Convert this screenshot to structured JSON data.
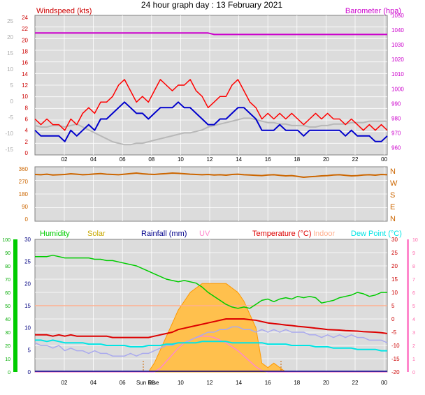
{
  "title": "24 hour graph day : 13 February 2021",
  "colors": {
    "wind_gust": "#ff0000",
    "wind_avg": "#0000cc",
    "wind_dir": "#cc6600",
    "barometer": "#cc00cc",
    "baro_grey": "#b8b8b8",
    "humidity": "#00cc00",
    "solar": "#ffa500",
    "rainfall": "#00008b",
    "uv": "#ff88cc",
    "temperature": "#dd0000",
    "indoor": "#ffb090",
    "dewpoint": "#00e5e5",
    "windchill": "#aaaaee",
    "plot_bg": "#dcdcdc"
  },
  "chart_data": [
    {
      "type": "line",
      "title": "24 hour graph day : 13 February 2021",
      "grid": true,
      "x_ticks": [
        "02",
        "04",
        "06",
        "08",
        "10",
        "12",
        "14",
        "16",
        "18",
        "20",
        "22",
        "00"
      ],
      "left_axis": {
        "label": "Windspeed (kts)",
        "range": [
          0,
          24
        ],
        "ticks": [
          0,
          2,
          4,
          6,
          8,
          10,
          12,
          14,
          16,
          18,
          20,
          22,
          24
        ]
      },
      "outer_left_ticks": [
        "-15",
        "-10",
        "-5",
        "0",
        "5",
        "10",
        "15",
        "20",
        "25"
      ],
      "right_axis": {
        "label": "Barometer (hpa)",
        "range": [
          955,
          1050
        ],
        "ticks": [
          960,
          970,
          980,
          990,
          1000,
          1010,
          1020,
          1030,
          1040,
          1050
        ]
      },
      "series": [
        {
          "name": "Windspeed (kts)",
          "role": "gust",
          "color": "#ff0000",
          "values": [
            6,
            5,
            6,
            5,
            5,
            4,
            6,
            5,
            7,
            8,
            7,
            9,
            9,
            10,
            12,
            13,
            11,
            9,
            10,
            9,
            11,
            13,
            12,
            11,
            12,
            12,
            13,
            11,
            10,
            8,
            9,
            10,
            10,
            12,
            13,
            11,
            9,
            8,
            6,
            7,
            6,
            7,
            6,
            7,
            6,
            5,
            6,
            7,
            6,
            7,
            6,
            6,
            5,
            6,
            5,
            4,
            5,
            4,
            5,
            4
          ]
        },
        {
          "role": "average",
          "color": "#0000cc",
          "values": [
            4,
            3,
            3,
            3,
            3,
            2,
            4,
            3,
            4,
            5,
            4,
            6,
            6,
            7,
            8,
            9,
            8,
            7,
            7,
            6,
            7,
            8,
            8,
            8,
            9,
            8,
            8,
            7,
            6,
            5,
            5,
            6,
            6,
            7,
            8,
            8,
            7,
            6,
            4,
            4,
            4,
            5,
            4,
            4,
            4,
            3,
            4,
            4,
            4,
            4,
            4,
            4,
            3,
            4,
            3,
            3,
            3,
            2,
            2,
            3
          ]
        },
        {
          "role": "barometer",
          "color": "#cc00cc",
          "values": [
            1038,
            1038,
            1038,
            1038,
            1038,
            1038,
            1038,
            1038,
            1038,
            1038,
            1038,
            1038,
            1038,
            1038,
            1038,
            1038,
            1038,
            1038,
            1038,
            1038,
            1038,
            1038,
            1038,
            1038,
            1038,
            1038,
            1038,
            1038,
            1038,
            1038,
            1037,
            1037,
            1037,
            1037,
            1037,
            1037,
            1037,
            1037,
            1037,
            1037,
            1037,
            1037,
            1037,
            1037,
            1037,
            1037,
            1037,
            1037,
            1037,
            1037,
            1037,
            1037,
            1037,
            1037,
            1037,
            1037,
            1037,
            1037,
            1037,
            1037
          ]
        },
        {
          "role": "grey-trace",
          "color": "#b8b8b8",
          "values": [
            975,
            974,
            974,
            975,
            975,
            974,
            975,
            976,
            974,
            972,
            970,
            968,
            966,
            964,
            963,
            962,
            962,
            963,
            963,
            964,
            965,
            966,
            967,
            968,
            969,
            970,
            970,
            971,
            972,
            974,
            975,
            976,
            977,
            978,
            979,
            980,
            980,
            979,
            978,
            977,
            977,
            976,
            976,
            975,
            975,
            975,
            974,
            974,
            975,
            975,
            976,
            976,
            976,
            977,
            977,
            977,
            978,
            978,
            978,
            978
          ]
        }
      ]
    },
    {
      "type": "line",
      "grid": true,
      "left_axis": {
        "range": [
          0,
          360
        ],
        "ticks": [
          0,
          90,
          180,
          270,
          360
        ]
      },
      "right_labels": [
        "N",
        "W",
        "S",
        "E",
        "N"
      ],
      "series": [
        {
          "role": "wind direction",
          "color": "#cc6600",
          "values": [
            320,
            318,
            322,
            316,
            318,
            320,
            325,
            322,
            318,
            320,
            324,
            326,
            322,
            320,
            318,
            322,
            326,
            330,
            325,
            322,
            320,
            324,
            326,
            330,
            328,
            325,
            322,
            320,
            318,
            320,
            316,
            318,
            315,
            320,
            322,
            318,
            316,
            314,
            312,
            316,
            318,
            314,
            310,
            312,
            306,
            300,
            304,
            306,
            310,
            312,
            316,
            318,
            314,
            310,
            312,
            316,
            318,
            315,
            320,
            318
          ]
        }
      ]
    },
    {
      "type": "line",
      "grid": true,
      "x_ticks": [
        "02",
        "04",
        "06",
        "08",
        "10",
        "12",
        "14",
        "16",
        "18",
        "20",
        "22",
        "00"
      ],
      "legend": [
        "Humidity",
        "Solar",
        "Rainfall (mm)",
        "UV",
        "Temperature (°C)",
        "Indoor",
        "Dew Point (°C)"
      ],
      "annotation": "Sun Rise",
      "outer_left_axis": {
        "range": [
          0,
          100
        ],
        "ticks": [
          0,
          10,
          20,
          30,
          40,
          50,
          60,
          70,
          80,
          90,
          100
        ]
      },
      "left_axis": {
        "range": [
          0,
          30
        ],
        "ticks": [
          0,
          5,
          10,
          15,
          20,
          25,
          30
        ]
      },
      "right_axis": {
        "range": [
          -20,
          30
        ],
        "ticks": [
          -20,
          -15,
          -10,
          -5,
          0,
          5,
          10,
          15,
          20,
          25,
          30
        ]
      },
      "outer_right_axis": {
        "range": [
          0,
          10
        ],
        "ticks": [
          0,
          1,
          2,
          3,
          4,
          5,
          6,
          7,
          8,
          9,
          10
        ]
      },
      "series": [
        {
          "name": "Humidity",
          "color": "#00cc00",
          "values": [
            87,
            87,
            87,
            88,
            87,
            86,
            86,
            86,
            86,
            86,
            85,
            85,
            84,
            84,
            83,
            82,
            81,
            80,
            78,
            76,
            74,
            72,
            70,
            69,
            68,
            69,
            68,
            67,
            64,
            60,
            57,
            54,
            51,
            49,
            48,
            49,
            48,
            51,
            54,
            55,
            53,
            55,
            56,
            55,
            57,
            56,
            57,
            56,
            52,
            53,
            54,
            56,
            57,
            58,
            60,
            59,
            57,
            58,
            60,
            60
          ]
        },
        {
          "name": "Solar",
          "color": "#ffa500",
          "values": [
            0,
            0,
            0,
            0,
            0,
            0,
            0,
            0,
            0,
            0,
            0,
            0,
            0,
            0,
            0,
            0,
            0,
            0,
            0,
            0,
            2,
            5,
            8,
            11,
            14,
            16,
            18,
            19,
            20,
            20,
            20,
            20,
            20,
            19,
            18,
            16,
            13,
            10,
            2,
            1,
            2,
            1,
            0,
            0,
            0,
            0,
            0,
            0,
            0,
            0,
            0,
            0,
            0,
            0,
            0,
            0,
            0,
            0,
            0,
            0
          ]
        },
        {
          "name": "Rainfall (mm)",
          "color": "#00008b",
          "values": [
            0,
            0,
            0,
            0,
            0,
            0,
            0,
            0,
            0,
            0,
            0,
            0,
            0,
            0,
            0,
            0,
            0,
            0,
            0,
            0,
            0,
            0,
            0,
            0,
            0,
            0,
            0,
            0,
            0,
            0,
            0,
            0,
            0,
            0,
            0,
            0,
            0,
            0,
            0,
            0,
            0,
            0,
            0,
            0,
            0,
            0,
            0,
            0,
            0,
            0,
            0,
            0,
            0,
            0,
            0,
            0,
            0,
            0,
            0,
            0
          ]
        },
        {
          "name": "UV",
          "color": "#ff88cc",
          "values": [
            0,
            0,
            0,
            0,
            0,
            0,
            0,
            0,
            0,
            0,
            0,
            0,
            0,
            0,
            0,
            0,
            0,
            0,
            0,
            0,
            0,
            0.3,
            0.8,
            1.3,
            1.8,
            2.2,
            2.4,
            2.6,
            2.7,
            2.7,
            2.6,
            2.4,
            2.2,
            1.9,
            1.6,
            1.2,
            0.8,
            0.4,
            0.1,
            0,
            0,
            0,
            0,
            0,
            0,
            0,
            0,
            0,
            0,
            0,
            0,
            0,
            0,
            0,
            0,
            0,
            0,
            0,
            0,
            0
          ]
        },
        {
          "name": "Temperature (°C)",
          "color": "#dd0000",
          "values": [
            -6,
            -6,
            -6,
            -6.5,
            -6,
            -6.5,
            -6,
            -6.5,
            -6.5,
            -6.5,
            -6.5,
            -6.5,
            -6.5,
            -7,
            -7,
            -7,
            -7,
            -7,
            -7,
            -7,
            -6.5,
            -6,
            -5.5,
            -5,
            -4,
            -3.5,
            -3,
            -2.5,
            -2,
            -1.5,
            -1,
            -0.5,
            0,
            0,
            0,
            0,
            -0.3,
            -0.5,
            -1,
            -1.5,
            -1.8,
            -2,
            -2.3,
            -2.5,
            -2.8,
            -3,
            -3.2,
            -3.5,
            -3.7,
            -4,
            -4.1,
            -4.2,
            -4.4,
            -4.5,
            -4.6,
            -4.8,
            -4.9,
            -5,
            -5.2,
            -5.5
          ]
        },
        {
          "name": "Indoor",
          "color": "#ffb090",
          "values": [
            5,
            5,
            5,
            5,
            5,
            5,
            5,
            5,
            5,
            5,
            5,
            5,
            5,
            5,
            5,
            5,
            5,
            5,
            5,
            5,
            5,
            5,
            5,
            5,
            5,
            5,
            5,
            5,
            5,
            5,
            5,
            5,
            5,
            5,
            5,
            5,
            5,
            5,
            5,
            5,
            5,
            5,
            5,
            5,
            5,
            5,
            5,
            5,
            5,
            5,
            5,
            5,
            5,
            5,
            5,
            5,
            5,
            5,
            5,
            5
          ]
        },
        {
          "name": "Dew Point (°C)",
          "color": "#00e5e5",
          "values": [
            -8,
            -8,
            -8.5,
            -8,
            -8.5,
            -9,
            -9,
            -9,
            -9,
            -9.5,
            -9.5,
            -9.5,
            -10,
            -10,
            -10,
            -10,
            -10.5,
            -10.5,
            -10.5,
            -10,
            -10,
            -10,
            -9.5,
            -9.5,
            -9,
            -9,
            -9,
            -9,
            -8.5,
            -8.5,
            -8.5,
            -8.5,
            -8.5,
            -9,
            -9,
            -9,
            -9,
            -9,
            -9,
            -9.5,
            -9.5,
            -9.5,
            -9.5,
            -10,
            -10,
            -10,
            -10,
            -10.5,
            -10.5,
            -10.5,
            -11,
            -11,
            -11,
            -11,
            -11.5,
            -11.5,
            -11.5,
            -11.5,
            -12,
            -12
          ]
        },
        {
          "role": "windchill",
          "color": "#aaaaee",
          "values": [
            -9,
            -10,
            -10,
            -11,
            -10,
            -12,
            -11,
            -12,
            -12,
            -13,
            -12,
            -13,
            -13,
            -14,
            -14,
            -14,
            -13,
            -14,
            -13,
            -13,
            -12,
            -11,
            -10,
            -10,
            -9,
            -9,
            -8,
            -7,
            -6,
            -5,
            -5,
            -4,
            -4,
            -3,
            -3,
            -4,
            -4,
            -5,
            -4,
            -5,
            -4,
            -5,
            -4,
            -5,
            -5,
            -5,
            -6,
            -6,
            -7,
            -6,
            -7,
            -6,
            -7,
            -6,
            -7,
            -7,
            -8,
            -8,
            -8,
            -9
          ]
        }
      ]
    }
  ]
}
